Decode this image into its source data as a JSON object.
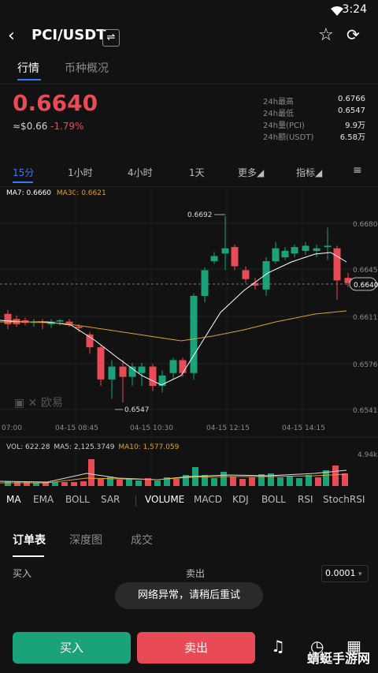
{
  "status_bar": {
    "time": "3:24"
  },
  "header": {
    "back_icon": "chevron-left-icon",
    "pair": "PCI/USDT",
    "swap_icon": "swap-icon",
    "star_icon": "star-icon",
    "share_icon": "share-icon"
  },
  "tabs": [
    {
      "label": "行情"
    },
    {
      "label": "币种概况"
    }
  ],
  "ticker": {
    "price": "0.6640",
    "usd": "≈$0.66",
    "change": "-1.79%",
    "stats": [
      {
        "label": "24h最高",
        "value": "0.6766"
      },
      {
        "label": "24h最低",
        "value": "0.6547"
      },
      {
        "label": "24h量(PCI)",
        "value": "9.9万"
      },
      {
        "label": "24h额(USDT)",
        "value": "6.58万"
      }
    ]
  },
  "timeframes": [
    {
      "label": "15分"
    },
    {
      "label": "1小时"
    },
    {
      "label": "4小时"
    },
    {
      "label": "1天"
    },
    {
      "label": "更多◢"
    },
    {
      "label": "指标◢"
    }
  ],
  "ma_legend": {
    "ma7": "MA7: 0.6660",
    "ma30": "MA30: 0.6621"
  },
  "chart": {
    "price_ticks": [
      "0.6680",
      "0.6645",
      "0.6611",
      "0.6576",
      "0.6541"
    ],
    "current_price": "0.6640",
    "high_label": "0.6692",
    "low_label": "0.6547",
    "time_labels": [
      "07:00",
      "04-15 08:45",
      "04-15 10:30",
      "04-15 12:15",
      "04-15 14:15"
    ],
    "vol_legend": {
      "vol": "VOL: 622.28",
      "ma5": "MA5: 2,125.3749",
      "ma10": "MA10: 1,577.059"
    },
    "vol_max": "4.94k",
    "logo": "欧易",
    "colors": {
      "up": "#1aa37a",
      "down": "#e84b55",
      "ma7": "#ffffff",
      "ma30": "#d9a320"
    }
  },
  "indicators": [
    "MA",
    "EMA",
    "BOLL",
    "SAR",
    "VOLUME",
    "MACD",
    "KDJ",
    "BOLL",
    "RSI",
    "StochRSI"
  ],
  "book_tabs": [
    {
      "label": "订单表"
    },
    {
      "label": "深度图"
    },
    {
      "label": "成交"
    }
  ],
  "order_book": {
    "buy_label": "买入",
    "sell_label": "卖出",
    "precision": "0.0001"
  },
  "toast": "网络异常，请稍后重试",
  "actions": {
    "buy": "买入",
    "sell": "卖出"
  },
  "watermark": "蜻蜓手游网"
}
